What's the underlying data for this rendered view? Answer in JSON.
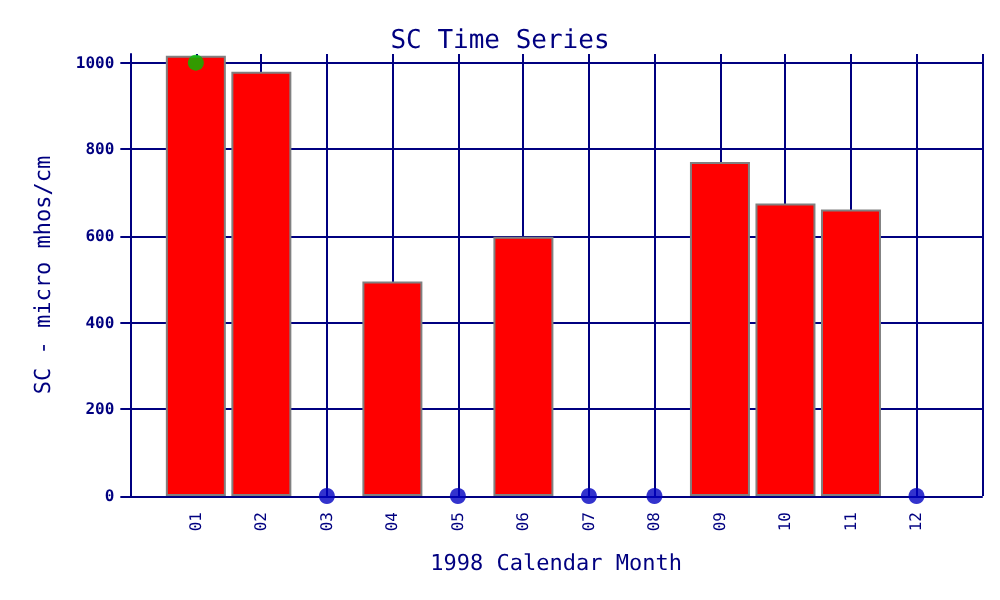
{
  "chart_data": {
    "type": "bar",
    "title": "SC Time Series",
    "xlabel": "1998 Calendar Month",
    "ylabel": "SC - micro mhos/cm",
    "categories": [
      "01",
      "02",
      "03",
      "04",
      "05",
      "06",
      "07",
      "08",
      "09",
      "10",
      "11",
      "12"
    ],
    "series": [
      {
        "color": "#ff0000",
        "values": [
          1016,
          979,
          null,
          495,
          null,
          598,
          null,
          null,
          771,
          675,
          661,
          null
        ]
      },
      {
        "type": "scatter",
        "color": "#00c000",
        "values": [
          1000,
          null,
          null,
          null,
          null,
          null,
          null,
          null,
          null,
          null,
          null,
          null
        ]
      },
      {
        "type": "scatter",
        "color": "#0000c0",
        "values": [
          null,
          null,
          0,
          null,
          0,
          null,
          0,
          0,
          null,
          null,
          null,
          0
        ]
      }
    ],
    "ylim": [
      0,
      1020
    ],
    "yticks": [
      0,
      200,
      400,
      600,
      800,
      1000
    ],
    "grid": true,
    "marker": "circle"
  }
}
